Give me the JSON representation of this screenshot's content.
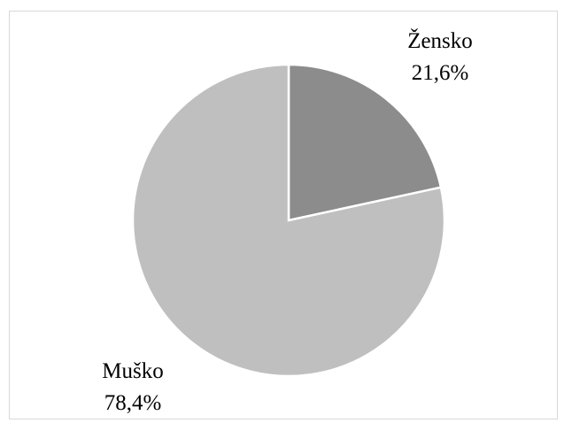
{
  "chart_data": {
    "type": "pie",
    "title": "",
    "legend": "none",
    "slices": [
      {
        "label": "Žensko",
        "value": 21.6,
        "value_label": "21,6%",
        "color": "#8c8c8c"
      },
      {
        "label": "Muško",
        "value": 78.4,
        "value_label": "78,4%",
        "color": "#bfbfbf"
      }
    ],
    "slice_border_color": "#ffffff"
  }
}
